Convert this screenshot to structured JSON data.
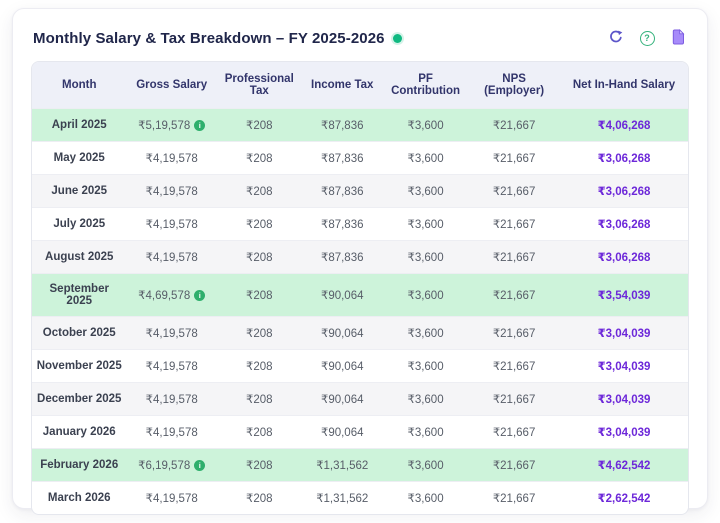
{
  "card": {
    "title": "Monthly Salary & Tax Breakdown – FY 2025-2026",
    "status_dot_color": "#10b981",
    "toolbar": {
      "refresh_icon": "refresh-circular-arrow",
      "help_icon": "question-mark-circle",
      "help_glyph": "?",
      "document_icon": "file-document"
    }
  },
  "colors": {
    "highlight_row": "#cdf3da",
    "zebra_row": "#f5f5f7",
    "header_row_bg": "#eef0f8",
    "header_text": "#32356b",
    "net_value": "#6d28d9",
    "badge_green": "#2eaf6c",
    "accent_purple": "#7c5ce0"
  },
  "table": {
    "columns": [
      "Month",
      "Gross Salary",
      "Professional Tax",
      "Income Tax",
      "PF Contribution",
      "NPS (Employer)",
      "Net In-Hand Salary"
    ],
    "badge_glyph": "i",
    "rows": [
      {
        "month": "April 2025",
        "gross": "₹5,19,578",
        "has_badge": true,
        "professional_tax": "₹208",
        "income_tax": "₹87,836",
        "pf": "₹3,600",
        "nps": "₹21,667",
        "net": "₹4,06,268",
        "highlight": true
      },
      {
        "month": "May 2025",
        "gross": "₹4,19,578",
        "has_badge": false,
        "professional_tax": "₹208",
        "income_tax": "₹87,836",
        "pf": "₹3,600",
        "nps": "₹21,667",
        "net": "₹3,06,268",
        "highlight": false
      },
      {
        "month": "June 2025",
        "gross": "₹4,19,578",
        "has_badge": false,
        "professional_tax": "₹208",
        "income_tax": "₹87,836",
        "pf": "₹3,600",
        "nps": "₹21,667",
        "net": "₹3,06,268",
        "highlight": false
      },
      {
        "month": "July 2025",
        "gross": "₹4,19,578",
        "has_badge": false,
        "professional_tax": "₹208",
        "income_tax": "₹87,836",
        "pf": "₹3,600",
        "nps": "₹21,667",
        "net": "₹3,06,268",
        "highlight": false
      },
      {
        "month": "August 2025",
        "gross": "₹4,19,578",
        "has_badge": false,
        "professional_tax": "₹208",
        "income_tax": "₹87,836",
        "pf": "₹3,600",
        "nps": "₹21,667",
        "net": "₹3,06,268",
        "highlight": false
      },
      {
        "month": "September 2025",
        "gross": "₹4,69,578",
        "has_badge": true,
        "professional_tax": "₹208",
        "income_tax": "₹90,064",
        "pf": "₹3,600",
        "nps": "₹21,667",
        "net": "₹3,54,039",
        "highlight": true
      },
      {
        "month": "October 2025",
        "gross": "₹4,19,578",
        "has_badge": false,
        "professional_tax": "₹208",
        "income_tax": "₹90,064",
        "pf": "₹3,600",
        "nps": "₹21,667",
        "net": "₹3,04,039",
        "highlight": false
      },
      {
        "month": "November 2025",
        "gross": "₹4,19,578",
        "has_badge": false,
        "professional_tax": "₹208",
        "income_tax": "₹90,064",
        "pf": "₹3,600",
        "nps": "₹21,667",
        "net": "₹3,04,039",
        "highlight": false
      },
      {
        "month": "December 2025",
        "gross": "₹4,19,578",
        "has_badge": false,
        "professional_tax": "₹208",
        "income_tax": "₹90,064",
        "pf": "₹3,600",
        "nps": "₹21,667",
        "net": "₹3,04,039",
        "highlight": false
      },
      {
        "month": "January 2026",
        "gross": "₹4,19,578",
        "has_badge": false,
        "professional_tax": "₹208",
        "income_tax": "₹90,064",
        "pf": "₹3,600",
        "nps": "₹21,667",
        "net": "₹3,04,039",
        "highlight": false
      },
      {
        "month": "February 2026",
        "gross": "₹6,19,578",
        "has_badge": true,
        "professional_tax": "₹208",
        "income_tax": "₹1,31,562",
        "pf": "₹3,600",
        "nps": "₹21,667",
        "net": "₹4,62,542",
        "highlight": true
      },
      {
        "month": "March 2026",
        "gross": "₹4,19,578",
        "has_badge": false,
        "professional_tax": "₹208",
        "income_tax": "₹1,31,562",
        "pf": "₹3,600",
        "nps": "₹21,667",
        "net": "₹2,62,542",
        "highlight": false
      }
    ]
  }
}
